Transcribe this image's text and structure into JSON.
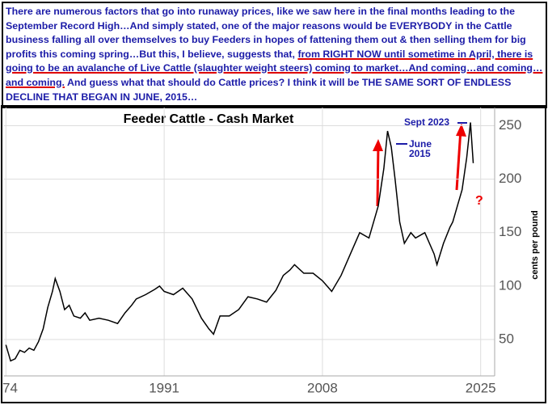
{
  "note": {
    "parts": [
      "There are numerous factors that go into runaway prices, like we saw here in the final months leading to the September Record High…And simply stated, one of the major reasons would be EVERYBODY in the Cattle business falling all over themselves to buy Feeders in hopes of fattening them out & then selling them for  big profits this coming spring…But this, I believe, suggests that, ",
      "from RIGHT NOW until sometime in April, there is going to be an avalanche of Live Cattle (slaughter weight steers) coming to market…And coming…and coming…and coming.",
      " And guess what that should do Cattle prices? I think it will be THE SAME SORT OF ENDLESS DECLINE THAT BEGAN IN JUNE, 2015…"
    ]
  },
  "chart_data": {
    "type": "line",
    "title": "Feeder Cattle - Cash Market",
    "y_label": "cents per pound",
    "annotations": [
      "Sept  2023",
      "June",
      "2015",
      "?"
    ],
    "x": [
      1974.0,
      1974.5,
      1975.0,
      1975.5,
      1976.0,
      1976.5,
      1977.0,
      1977.5,
      1978.0,
      1978.5,
      1979.0,
      1979.3,
      1979.8,
      1980.3,
      1980.8,
      1981.3,
      1982.0,
      1982.5,
      1983.0,
      1984.0,
      1985.0,
      1986.0,
      1986.8,
      1987.5,
      1988.0,
      1989.0,
      1990.0,
      1990.5,
      1991.0,
      1992.0,
      1993.0,
      1994.0,
      1995.0,
      1995.8,
      1996.3,
      1997.0,
      1998.0,
      1999.0,
      2000.0,
      2001.0,
      2002.0,
      2003.0,
      2003.8,
      2004.5,
      2005.0,
      2006.0,
      2007.0,
      2008.0,
      2008.5,
      2009.0,
      2010.0,
      2011.0,
      2012.0,
      2013.0,
      2014.0,
      2014.6,
      2015.0,
      2015.4,
      2015.8,
      2016.3,
      2016.8,
      2017.5,
      2018.0,
      2019.0,
      2020.0,
      2020.3,
      2021.0,
      2021.7,
      2022.0,
      2022.5,
      2023.0,
      2023.5,
      2023.9,
      2024.2
    ],
    "series": [
      {
        "name": "Feeder Cattle",
        "color": "#000000",
        "values": [
          45,
          30,
          32,
          40,
          38,
          42,
          40,
          48,
          60,
          80,
          95,
          107,
          95,
          78,
          82,
          72,
          70,
          75,
          68,
          70,
          68,
          65,
          75,
          82,
          88,
          92,
          97,
          100,
          95,
          92,
          98,
          88,
          70,
          60,
          55,
          72,
          72,
          78,
          90,
          88,
          85,
          96,
          110,
          115,
          120,
          112,
          112,
          105,
          100,
          95,
          110,
          130,
          150,
          145,
          175,
          210,
          245,
          230,
          200,
          160,
          140,
          150,
          145,
          150,
          130,
          120,
          140,
          155,
          160,
          175,
          190,
          220,
          253,
          215
        ]
      }
    ],
    "xlim": [
      1973.8,
      2026.5
    ],
    "ylim": [
      16,
      267
    ],
    "xticks": [
      {
        "value": 1974,
        "label": "74"
      },
      1991,
      2008,
      2025
    ],
    "yticks": [
      50,
      100,
      150,
      200,
      250
    ],
    "grid": true
  }
}
